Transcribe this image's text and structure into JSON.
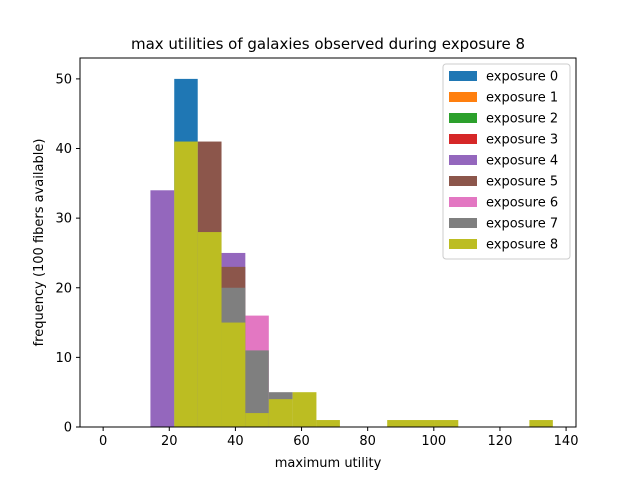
{
  "chart_data": {
    "type": "bar",
    "subtype": "histogram",
    "title": "max utilities of galaxies observed during exposure 8",
    "xlabel": "maximum utility",
    "ylabel": "frequency (100 fibers available)",
    "xlim": [
      -7,
      143
    ],
    "ylim": [
      0,
      53
    ],
    "xticks": [
      0,
      20,
      40,
      60,
      80,
      100,
      120,
      140
    ],
    "yticks": [
      0,
      10,
      20,
      30,
      40,
      50
    ],
    "grid": false,
    "legend_position": "top-right",
    "series": [
      {
        "name": "exposure 0",
        "color": "#1f77b4",
        "bins": [
          {
            "x0": 21.5,
            "x1": 28.6,
            "count": 50
          }
        ]
      },
      {
        "name": "exposure 1",
        "color": "#ff7f0e",
        "bins": []
      },
      {
        "name": "exposure 2",
        "color": "#2ca02c",
        "bins": []
      },
      {
        "name": "exposure 3",
        "color": "#d62728",
        "bins": []
      },
      {
        "name": "exposure 4",
        "color": "#9467bd",
        "bins": [
          {
            "x0": 14.3,
            "x1": 21.5,
            "count": 34
          },
          {
            "x0": 35.8,
            "x1": 43.0,
            "count": 25
          }
        ]
      },
      {
        "name": "exposure 5",
        "color": "#8c564b",
        "bins": [
          {
            "x0": 28.6,
            "x1": 35.8,
            "count": 41
          },
          {
            "x0": 35.8,
            "x1": 43.0,
            "count": 23
          }
        ]
      },
      {
        "name": "exposure 6",
        "color": "#e377c2",
        "bins": [
          {
            "x0": 43.0,
            "x1": 50.1,
            "count": 16
          }
        ]
      },
      {
        "name": "exposure 7",
        "color": "#7f7f7f",
        "bins": [
          {
            "x0": 35.8,
            "x1": 43.0,
            "count": 20
          },
          {
            "x0": 43.0,
            "x1": 50.1,
            "count": 11
          },
          {
            "x0": 50.1,
            "x1": 57.3,
            "count": 5
          }
        ]
      },
      {
        "name": "exposure 8",
        "color": "#bcbd22",
        "bins": [
          {
            "x0": 21.5,
            "x1": 28.6,
            "count": 41
          },
          {
            "x0": 28.6,
            "x1": 35.8,
            "count": 28
          },
          {
            "x0": 35.8,
            "x1": 43.0,
            "count": 15
          },
          {
            "x0": 43.0,
            "x1": 50.1,
            "count": 2
          },
          {
            "x0": 50.1,
            "x1": 57.3,
            "count": 4
          },
          {
            "x0": 57.3,
            "x1": 64.5,
            "count": 5
          },
          {
            "x0": 64.5,
            "x1": 71.6,
            "count": 1
          },
          {
            "x0": 85.9,
            "x1": 93.1,
            "count": 1
          },
          {
            "x0": 93.1,
            "x1": 100.2,
            "count": 1
          },
          {
            "x0": 100.2,
            "x1": 107.4,
            "count": 1
          },
          {
            "x0": 128.9,
            "x1": 136.0,
            "count": 1
          }
        ]
      }
    ]
  }
}
